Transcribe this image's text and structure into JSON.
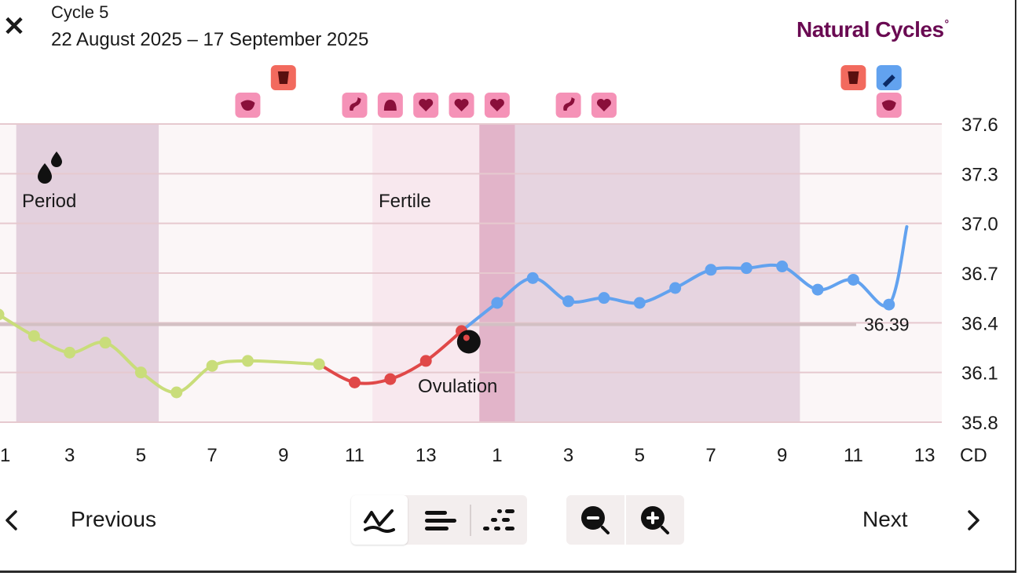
{
  "header": {
    "close_icon": "close-icon",
    "cycle_title": "Cycle 5",
    "date_range": "22 August 2025 – 17 September 2025",
    "brand": "Natural Cycles",
    "brand_mark": "°"
  },
  "colors": {
    "brand": "#6a0a52",
    "pre_ovulation_temp": "#c9dd7a",
    "fertile_temp": "#e04848",
    "post_ovulation_temp": "#62a2ef",
    "period_band": "#e3d0dd",
    "fertile_band": "#f8e8ee",
    "ovulation_band": "#e2b4c9",
    "luteal_band": "#e6d4e0",
    "icon_pink": "#f592b7",
    "icon_red": "#f26a5e",
    "icon_blue": "#62a2ef"
  },
  "chart_data": {
    "type": "line",
    "title": "",
    "ylabel": "",
    "xlabel": "CD",
    "ylim": [
      35.8,
      37.6
    ],
    "y_ticks": [
      "37.6",
      "37.3",
      "37.0",
      "36.7",
      "36.4",
      "36.1",
      "35.8"
    ],
    "x_ticks": [
      "1",
      "3",
      "5",
      "7",
      "9",
      "11",
      "13",
      "1",
      "3",
      "5",
      "7",
      "9",
      "11",
      "13"
    ],
    "x_axis_unit": "CD",
    "baseline": {
      "value": 36.39,
      "label": "36.39"
    },
    "phase_labels": {
      "period": "Period",
      "fertile": "Fertile",
      "ovulation": "Ovulation"
    },
    "bands": [
      {
        "name": "period",
        "from": 0.5,
        "to": 4.5
      },
      {
        "name": "fertile",
        "from": 10.5,
        "to": 13.5
      },
      {
        "name": "ovulation",
        "from": 13.5,
        "to": 14.5
      },
      {
        "name": "luteal",
        "from": 14.5,
        "to": 22.5
      }
    ],
    "series": [
      {
        "key": "pre",
        "points": [
          [
            0,
            36.45
          ],
          [
            1,
            36.32
          ],
          [
            2,
            36.22
          ],
          [
            3,
            36.28
          ],
          [
            4,
            36.1
          ],
          [
            5,
            35.98
          ],
          [
            6,
            36.14
          ],
          [
            7,
            36.17
          ],
          [
            9,
            36.15
          ]
        ]
      },
      {
        "key": "fertile",
        "points": [
          [
            9,
            36.15
          ],
          [
            10,
            36.04
          ],
          [
            11,
            36.06
          ],
          [
            12,
            36.17
          ],
          [
            13,
            36.35
          ]
        ]
      },
      {
        "key": "post",
        "points": [
          [
            13,
            36.35
          ],
          [
            14,
            36.52
          ],
          [
            15,
            36.67
          ],
          [
            16,
            36.53
          ],
          [
            17,
            36.55
          ],
          [
            18,
            36.52
          ],
          [
            19,
            36.61
          ],
          [
            20,
            36.72
          ],
          [
            21,
            36.73
          ],
          [
            22,
            36.74
          ],
          [
            23,
            36.6
          ],
          [
            24,
            36.66
          ],
          [
            25,
            36.51
          ],
          [
            25.5,
            36.98
          ]
        ]
      }
    ],
    "point_x": [
      0,
      1,
      2,
      3,
      4,
      5,
      6,
      7,
      9,
      10,
      11,
      12,
      13,
      14,
      15,
      16,
      17,
      18,
      19,
      20,
      21,
      22,
      23,
      24,
      25
    ],
    "ovulation_marker": {
      "x": 13.05,
      "y": 36.3
    },
    "event_icons": [
      {
        "x": 8,
        "row": 1,
        "color": "red",
        "icon": "cup-icon"
      },
      {
        "x": 7,
        "row": 2,
        "color": "pink",
        "icon": "mouth-icon"
      },
      {
        "x": 10,
        "row": 2,
        "color": "pink",
        "icon": "hand-icon"
      },
      {
        "x": 11,
        "row": 2,
        "color": "pink",
        "icon": "leaf-icon"
      },
      {
        "x": 12,
        "row": 2,
        "color": "pink",
        "icon": "heart-icon"
      },
      {
        "x": 13,
        "row": 2,
        "color": "pink",
        "icon": "heart-icon"
      },
      {
        "x": 14,
        "row": 2,
        "color": "pink",
        "icon": "heart-icon"
      },
      {
        "x": 16,
        "row": 2,
        "color": "pink",
        "icon": "sparkle-icon"
      },
      {
        "x": 17,
        "row": 2,
        "color": "pink",
        "icon": "shield-heart-icon"
      },
      {
        "x": 24,
        "row": 1,
        "color": "red",
        "icon": "cup-icon"
      },
      {
        "x": 25,
        "row": 1,
        "color": "blue",
        "icon": "pen-plus-icon"
      },
      {
        "x": 25,
        "row": 2,
        "color": "pink",
        "icon": "mouth-icon"
      }
    ]
  },
  "footer": {
    "prev_label": "Previous",
    "next_label": "Next",
    "prev_icon": "chevron-left-icon",
    "next_icon": "chevron-right-icon",
    "view_buttons": [
      "line-graph-icon",
      "bars-icon",
      "dots-icon"
    ],
    "zoom_buttons": [
      "zoom-out-icon",
      "zoom-in-icon"
    ]
  }
}
